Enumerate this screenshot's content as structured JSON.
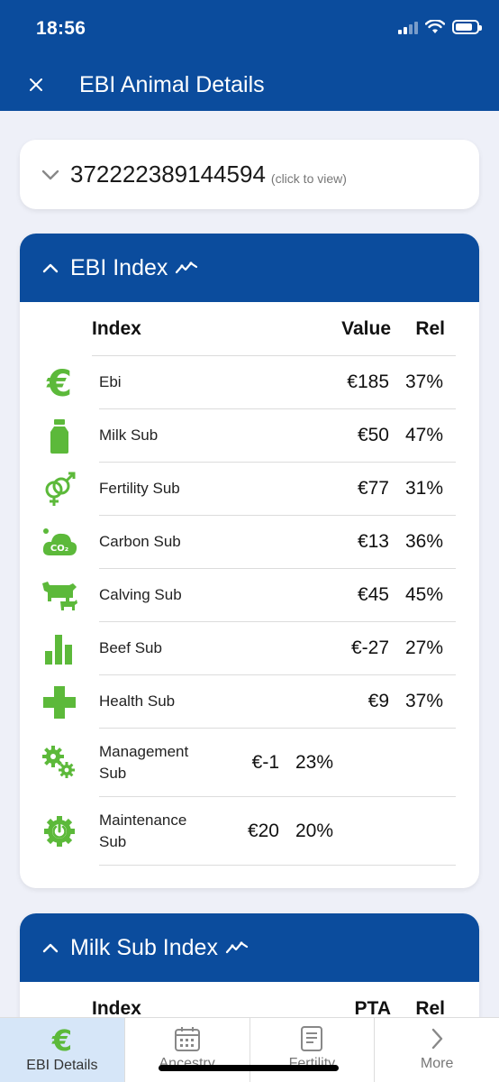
{
  "status_bar": {
    "time": "18:56"
  },
  "header": {
    "title": "EBI Animal Details"
  },
  "animal": {
    "id": "372222389144594",
    "hint": "(click to view)"
  },
  "ebi_section": {
    "title": "EBI Index",
    "columns": {
      "name": "Index",
      "value": "Value",
      "rel": "Rel"
    },
    "rows": [
      {
        "icon": "euro-icon",
        "name": "Ebi",
        "value": "€185",
        "rel": "37%"
      },
      {
        "icon": "milk-bottle-icon",
        "name": "Milk Sub",
        "value": "€50",
        "rel": "47%"
      },
      {
        "icon": "gender-icon",
        "name": "Fertility Sub",
        "value": "€77",
        "rel": "31%"
      },
      {
        "icon": "co2-cloud-icon",
        "name": "Carbon Sub",
        "value": "€13",
        "rel": "36%"
      },
      {
        "icon": "cow-calf-icon",
        "name": "Calving Sub",
        "value": "€45",
        "rel": "45%"
      },
      {
        "icon": "bar-chart-icon",
        "name": "Beef Sub",
        "value": "€-27",
        "rel": "27%"
      },
      {
        "icon": "health-cross-icon",
        "name": "Health Sub",
        "value": "€9",
        "rel": "37%"
      },
      {
        "icon": "gears-icon",
        "name": "Management Sub",
        "value": "€-1",
        "rel": "23%"
      },
      {
        "icon": "maintenance-icon",
        "name": "Maintenance Sub",
        "value": "€20",
        "rel": "20%"
      }
    ]
  },
  "milk_section": {
    "title": "Milk Sub Index",
    "columns": {
      "name": "Index",
      "value": "PTA",
      "rel": "Rel"
    }
  },
  "tabs": [
    {
      "icon": "euro-icon",
      "label": "EBI Details",
      "active": true
    },
    {
      "icon": "calendar-icon",
      "label": "Ancestry",
      "active": false
    },
    {
      "icon": "document-icon",
      "label": "Fertility",
      "active": false
    },
    {
      "icon": "chevron-right-icon",
      "label": "More",
      "active": false
    }
  ],
  "colors": {
    "primary": "#0b4c9d",
    "accent_green": "#5cb93a",
    "background": "#eef0f8"
  }
}
